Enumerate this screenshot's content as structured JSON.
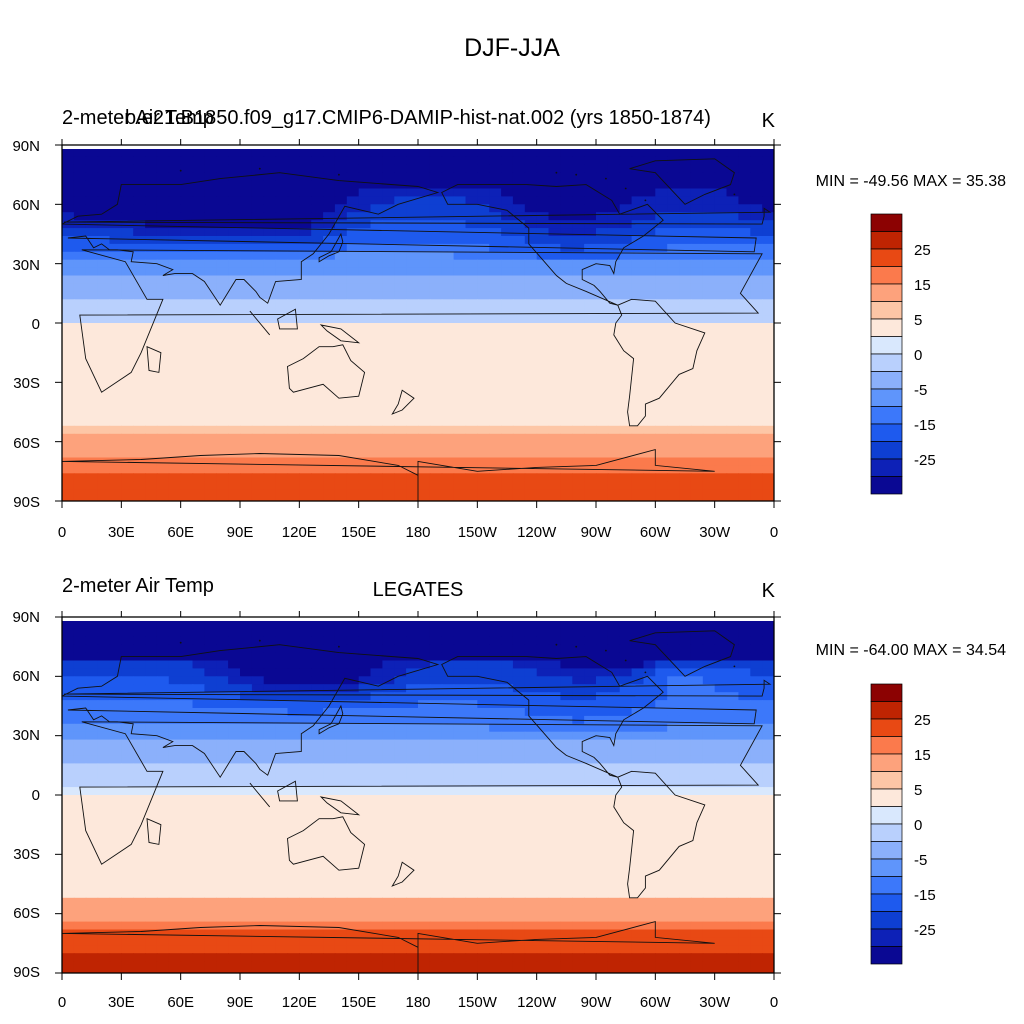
{
  "figure": {
    "title": "DJF-JJA",
    "panels": [
      {
        "id": "model",
        "left_label": "2-meter Air Temp",
        "center_label": "b.e21.B1850.f09_g17.CMIP6-DAMIP-hist-nat.002 (yrs 1850-1874)",
        "units": "K",
        "stats": "MIN = -49.56 MAX =  35.38",
        "field": {
          "dec": -20,
          "decRangeLon": 85,
          "equator": 0,
          "southRaise": 0,
          "extra": [
            {
              "lon": 48,
              "lat": 64,
              "rlon": 48,
              "rlat": 14,
              "amp": -18
            },
            {
              "lon": 112,
              "lat": 60,
              "rlon": 18,
              "rlat": 12,
              "amp": -14
            },
            {
              "lon": 258,
              "lat": 58,
              "rlon": 30,
              "rlat": 16,
              "amp": -8
            },
            {
              "lon": 80,
              "lat": 72,
              "rlon": 35,
              "rlat": 9,
              "amp": -8
            }
          ]
        }
      },
      {
        "id": "obs",
        "left_label": "2-meter Air Temp",
        "center_label": "LEGATES",
        "units": "K",
        "stats": "MIN = -64.00 MAX =  34.54",
        "field": {
          "dec": -6,
          "decRangeLon": 80,
          "equator": 1,
          "southRaise": 4,
          "extra": [
            {
              "lon": 125,
              "lat": 66,
              "rlon": 30,
              "rlat": 12,
              "amp": -18
            },
            {
              "lon": 285,
              "lat": 74,
              "rlon": 25,
              "rlat": 9,
              "amp": -14
            },
            {
              "lon": 200,
              "lat": 84,
              "rlon": 70,
              "rlat": 5,
              "amp": -10
            },
            {
              "lon": 310,
              "lat": 62,
              "rlon": 18,
              "rlat": 8,
              "amp": 8
            }
          ]
        }
      }
    ]
  },
  "map": {
    "lon_ticks": [
      "0",
      "30E",
      "60E",
      "90E",
      "120E",
      "150E",
      "180",
      "150W",
      "120W",
      "90W",
      "60W",
      "30W",
      "0"
    ],
    "lat_ticks": [
      "90N",
      "60N",
      "30N",
      "0",
      "30S",
      "60S",
      "90S"
    ]
  },
  "colorbar": {
    "levels": [
      -35,
      -30,
      -25,
      -20,
      -15,
      -10,
      -5,
      0,
      5,
      10,
      15,
      20,
      25,
      30
    ],
    "labels": [
      "25",
      "15",
      "5",
      "0",
      "-5",
      "-15",
      "-25"
    ],
    "colors": [
      "#0a0893",
      "#0d21b7",
      "#0e3fd2",
      "#1e5aee",
      "#3c78fa",
      "#5f95fb",
      "#8bb0fb",
      "#b9d0fd",
      "#d9e8fd",
      "#fde8db",
      "#fdc6a6",
      "#fda27c",
      "#fb7a4c",
      "#e84914",
      "#bf2402",
      "#8c0202"
    ]
  }
}
